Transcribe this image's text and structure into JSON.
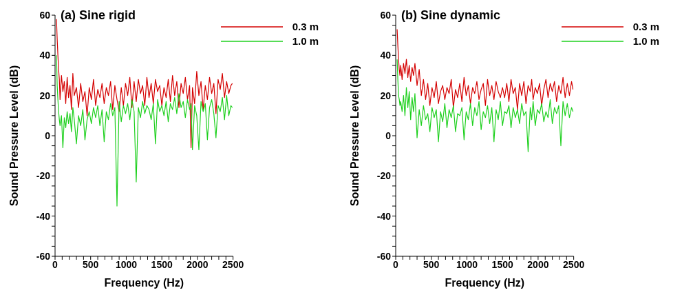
{
  "chart_data": [
    {
      "type": "line",
      "title": "(a) Sine rigid",
      "xlabel": "Frequency (Hz)",
      "ylabel": "Sound Pressure Level (dB)",
      "legend": "top right",
      "xlim": [
        0,
        2500
      ],
      "ylim": [
        -60,
        60
      ],
      "xticks": [
        0,
        {
          "value": 100,
          "label": null
        },
        {
          "value": 200,
          "label": null
        },
        {
          "value": 300,
          "label": null
        },
        {
          "value": 400,
          "label": null
        },
        500,
        {
          "value": 600,
          "label": null
        },
        {
          "value": 700,
          "label": null
        },
        {
          "value": 800,
          "label": null
        },
        {
          "value": 900,
          "label": null
        },
        1000,
        {
          "value": 1100,
          "label": null
        },
        {
          "value": 1200,
          "label": null
        },
        {
          "value": 1300,
          "label": null
        },
        {
          "value": 1400,
          "label": null
        },
        1500,
        {
          "value": 1600,
          "label": null
        },
        {
          "value": 1700,
          "label": null
        },
        {
          "value": 1800,
          "label": null
        },
        {
          "value": 1900,
          "label": null
        },
        2000,
        {
          "value": 2100,
          "label": null
        },
        {
          "value": 2200,
          "label": null
        },
        {
          "value": 2300,
          "label": null
        },
        {
          "value": 2400,
          "label": null
        },
        2500
      ],
      "yticks": [
        -60,
        {
          "value": -55,
          "label": null
        },
        {
          "value": -50,
          "label": null
        },
        {
          "value": -45,
          "label": null
        },
        -40,
        {
          "value": -35,
          "label": null
        },
        {
          "value": -30,
          "label": null
        },
        {
          "value": -25,
          "label": null
        },
        -20,
        {
          "value": -15,
          "label": null
        },
        {
          "value": -10,
          "label": null
        },
        {
          "value": -5,
          "label": null
        },
        0,
        {
          "value": 5,
          "label": null
        },
        {
          "value": 10,
          "label": null
        },
        {
          "value": 15,
          "label": null
        },
        20,
        {
          "value": 25,
          "label": null
        },
        {
          "value": 30,
          "label": null
        },
        {
          "value": 35,
          "label": null
        },
        40,
        {
          "value": 45,
          "label": null
        },
        {
          "value": 50,
          "label": null
        },
        {
          "value": 55,
          "label": null
        },
        60
      ],
      "x": [
        20,
        30,
        40,
        50,
        60,
        70,
        90,
        110,
        130,
        150,
        170,
        190,
        210,
        230,
        250,
        270,
        300,
        330,
        360,
        390,
        420,
        450,
        480,
        510,
        540,
        570,
        600,
        630,
        660,
        690,
        720,
        750,
        780,
        810,
        840,
        870,
        900,
        930,
        960,
        990,
        1020,
        1050,
        1080,
        1110,
        1140,
        1170,
        1200,
        1230,
        1260,
        1290,
        1320,
        1350,
        1380,
        1410,
        1440,
        1470,
        1500,
        1530,
        1560,
        1590,
        1620,
        1650,
        1680,
        1710,
        1740,
        1770,
        1800,
        1830,
        1860,
        1890,
        1910,
        1930,
        1960,
        1990,
        2020,
        2050,
        2080,
        2110,
        2140,
        2170,
        2200,
        2230,
        2260,
        2290,
        2320,
        2350,
        2380,
        2410,
        2440,
        2470,
        2490
      ],
      "series": [
        {
          "name": "0.3 m",
          "color": "#d40000",
          "values": [
            58,
            48,
            40,
            33,
            28,
            18,
            30,
            22,
            27,
            16,
            29,
            19,
            25,
            13,
            31,
            20,
            24,
            14,
            26,
            17,
            22,
            10,
            24,
            18,
            28,
            15,
            23,
            19,
            26,
            16,
            24,
            20,
            27,
            13,
            25,
            18,
            12,
            24,
            15,
            26,
            20,
            29,
            14,
            27,
            17,
            28,
            21,
            25,
            15,
            29,
            19,
            26,
            16,
            28,
            22,
            25,
            15,
            24,
            19,
            28,
            17,
            30,
            20,
            27,
            14,
            26,
            21,
            29,
            18,
            25,
            -6,
            24,
            16,
            32,
            20,
            27,
            13,
            25,
            18,
            29,
            21,
            26,
            11,
            28,
            23,
            31,
            19,
            27,
            21,
            25,
            26
          ]
        },
        {
          "name": "1.0 m",
          "color": "#1ed01e",
          "values": [
            40,
            25,
            18,
            12,
            8,
            5,
            10,
            -6,
            9,
            4,
            12,
            6,
            11,
            2,
            14,
            8,
            -4,
            10,
            5,
            13,
            -2,
            8,
            12,
            6,
            14,
            9,
            15,
            5,
            13,
            -3,
            12,
            8,
            16,
            10,
            14,
            -35,
            17,
            7,
            15,
            11,
            16,
            8,
            18,
            12,
            -23,
            14,
            9,
            17,
            11,
            15,
            13,
            8,
            16,
            -4,
            18,
            12,
            15,
            10,
            17,
            7,
            16,
            13,
            19,
            11,
            21,
            14,
            17,
            9,
            18,
            13,
            16,
            -7,
            15,
            10,
            -7,
            17,
            12,
            16,
            -2,
            14,
            18,
            11,
            -1,
            15,
            12,
            19,
            8,
            20,
            10,
            15,
            14
          ]
        }
      ]
    },
    {
      "type": "line",
      "title": "(b) Sine dynamic",
      "xlabel": "Frequency (Hz)",
      "ylabel": "Sound Pressure Level (dB)",
      "legend": "top right",
      "xlim": [
        0,
        2500
      ],
      "ylim": [
        -60,
        60
      ],
      "xticks": [
        0,
        {
          "value": 100,
          "label": null
        },
        {
          "value": 200,
          "label": null
        },
        {
          "value": 300,
          "label": null
        },
        {
          "value": 400,
          "label": null
        },
        500,
        {
          "value": 600,
          "label": null
        },
        {
          "value": 700,
          "label": null
        },
        {
          "value": 800,
          "label": null
        },
        {
          "value": 900,
          "label": null
        },
        1000,
        {
          "value": 1100,
          "label": null
        },
        {
          "value": 1200,
          "label": null
        },
        {
          "value": 1300,
          "label": null
        },
        {
          "value": 1400,
          "label": null
        },
        1500,
        {
          "value": 1600,
          "label": null
        },
        {
          "value": 1700,
          "label": null
        },
        {
          "value": 1800,
          "label": null
        },
        {
          "value": 1900,
          "label": null
        },
        2000,
        {
          "value": 2100,
          "label": null
        },
        {
          "value": 2200,
          "label": null
        },
        {
          "value": 2300,
          "label": null
        },
        {
          "value": 2400,
          "label": null
        },
        2500
      ],
      "yticks": [
        -60,
        {
          "value": -55,
          "label": null
        },
        {
          "value": -50,
          "label": null
        },
        {
          "value": -45,
          "label": null
        },
        -40,
        {
          "value": -35,
          "label": null
        },
        {
          "value": -30,
          "label": null
        },
        {
          "value": -25,
          "label": null
        },
        -20,
        {
          "value": -15,
          "label": null
        },
        {
          "value": -10,
          "label": null
        },
        {
          "value": -5,
          "label": null
        },
        0,
        {
          "value": 5,
          "label": null
        },
        {
          "value": 10,
          "label": null
        },
        {
          "value": 15,
          "label": null
        },
        20,
        {
          "value": 25,
          "label": null
        },
        {
          "value": 30,
          "label": null
        },
        {
          "value": 35,
          "label": null
        },
        40,
        {
          "value": 45,
          "label": null
        },
        {
          "value": 50,
          "label": null
        },
        {
          "value": 55,
          "label": null
        },
        60
      ],
      "x": [
        20,
        30,
        40,
        50,
        60,
        70,
        90,
        110,
        130,
        150,
        170,
        190,
        210,
        230,
        250,
        270,
        300,
        330,
        360,
        390,
        420,
        450,
        480,
        510,
        540,
        570,
        600,
        630,
        660,
        690,
        720,
        750,
        780,
        810,
        840,
        870,
        900,
        930,
        960,
        990,
        1020,
        1050,
        1080,
        1110,
        1140,
        1170,
        1200,
        1230,
        1260,
        1290,
        1320,
        1350,
        1380,
        1410,
        1440,
        1470,
        1500,
        1530,
        1560,
        1590,
        1620,
        1650,
        1680,
        1710,
        1740,
        1770,
        1800,
        1830,
        1860,
        1890,
        1910,
        1930,
        1960,
        1990,
        2020,
        2050,
        2080,
        2110,
        2140,
        2170,
        2200,
        2230,
        2260,
        2290,
        2320,
        2350,
        2380,
        2410,
        2440,
        2470,
        2490
      ],
      "series": [
        {
          "name": "0.3 m",
          "color": "#d40000",
          "values": [
            53,
            45,
            38,
            33,
            30,
            35,
            28,
            36,
            31,
            38,
            29,
            35,
            27,
            34,
            30,
            36,
            25,
            33,
            20,
            28,
            18,
            26,
            15,
            24,
            19,
            27,
            16,
            22,
            25,
            18,
            24,
            21,
            28,
            14,
            23,
            19,
            26,
            17,
            29,
            20,
            25,
            16,
            24,
            21,
            27,
            18,
            23,
            26,
            15,
            28,
            20,
            25,
            18,
            27,
            22,
            19,
            24,
            19,
            26,
            17,
            28,
            21,
            24,
            13,
            26,
            20,
            27,
            16,
            25,
            22,
            28,
            18,
            24,
            21,
            26,
            15,
            23,
            28,
            19,
            26,
            22,
            27,
            17,
            25,
            21,
            29,
            19,
            26,
            20,
            27,
            23
          ]
        },
        {
          "name": "1.0 m",
          "color": "#1ed01e",
          "values": [
            38,
            28,
            20,
            18,
            15,
            17,
            12,
            20,
            10,
            24,
            14,
            22,
            8,
            19,
            12,
            21,
            -1,
            13,
            5,
            15,
            8,
            11,
            2,
            14,
            9,
            13,
            -3,
            12,
            7,
            16,
            4,
            13,
            9,
            15,
            2,
            11,
            10,
            14,
            -2,
            12,
            8,
            16,
            5,
            14,
            10,
            17,
            3,
            12,
            9,
            15,
            6,
            14,
            -3,
            13,
            8,
            17,
            5,
            12,
            11,
            15,
            4,
            14,
            9,
            13,
            6,
            16,
            10,
            12,
            -8,
            14,
            8,
            17,
            5,
            13,
            11,
            16,
            7,
            12,
            9,
            18,
            6,
            14,
            11,
            15,
            -5,
            17,
            10,
            16,
            9,
            14,
            12
          ]
        }
      ]
    }
  ]
}
